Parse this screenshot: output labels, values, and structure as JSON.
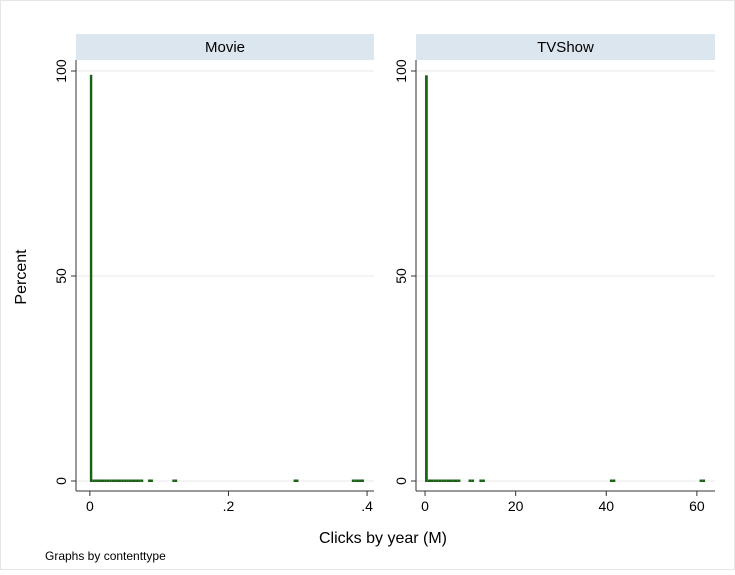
{
  "chart_data": {
    "type": "bar",
    "ylabel": "Percent",
    "xlabel": "Clicks by year (M)",
    "note": "Graphs by contenttype",
    "colors": {
      "bar": "#1a6015",
      "strip": "#dce6ee",
      "frame": "#333333",
      "grid": "#eaeaea"
    },
    "panels": [
      {
        "title": "Movie",
        "xlim": [
          -0.02,
          0.41
        ],
        "ylim": [
          -5,
          100
        ],
        "xticks": [
          0,
          0.2,
          0.4
        ],
        "xtick_labels": [
          "0",
          ".2",
          ".4"
        ],
        "yticks": [
          0,
          50,
          100
        ],
        "ytick_labels": [
          "0",
          "50",
          "100"
        ],
        "bin_width": 0.0035,
        "bins": [
          {
            "x": 0.0,
            "value": 99.3
          },
          {
            "x": 0.0035,
            "value": 0.2
          },
          {
            "x": 0.007,
            "value": 0.15
          },
          {
            "x": 0.0105,
            "value": 0.1
          },
          {
            "x": 0.014,
            "value": 0.1
          },
          {
            "x": 0.0175,
            "value": 0.08
          },
          {
            "x": 0.021,
            "value": 0.07
          },
          {
            "x": 0.0245,
            "value": 0.06
          },
          {
            "x": 0.028,
            "value": 0.05
          },
          {
            "x": 0.0315,
            "value": 0.05
          },
          {
            "x": 0.035,
            "value": 0.04
          },
          {
            "x": 0.0385,
            "value": 0.04
          },
          {
            "x": 0.042,
            "value": 0.03
          },
          {
            "x": 0.0455,
            "value": 0.03
          },
          {
            "x": 0.049,
            "value": 0.03
          },
          {
            "x": 0.0525,
            "value": 0.02
          },
          {
            "x": 0.056,
            "value": 0.02
          },
          {
            "x": 0.0595,
            "value": 0.02
          },
          {
            "x": 0.063,
            "value": 0.02
          },
          {
            "x": 0.0665,
            "value": 0.02
          },
          {
            "x": 0.07,
            "value": 0.02
          },
          {
            "x": 0.0735,
            "value": 0.02
          },
          {
            "x": 0.084,
            "value": 0.01
          },
          {
            "x": 0.0875,
            "value": 0.01
          },
          {
            "x": 0.119,
            "value": 0.01
          },
          {
            "x": 0.1225,
            "value": 0.01
          },
          {
            "x": 0.294,
            "value": 0.01
          },
          {
            "x": 0.2975,
            "value": 0.01
          },
          {
            "x": 0.378,
            "value": 0.01
          },
          {
            "x": 0.3815,
            "value": 0.01
          },
          {
            "x": 0.385,
            "value": 0.01
          },
          {
            "x": 0.3885,
            "value": 0.01
          },
          {
            "x": 0.392,
            "value": 0.01
          }
        ]
      },
      {
        "title": "TVShow",
        "xlim": [
          -2,
          64
        ],
        "ylim": [
          -5,
          100
        ],
        "xticks": [
          0,
          20,
          40,
          60
        ],
        "xtick_labels": [
          "0",
          "20",
          "40",
          "60"
        ],
        "yticks": [
          0,
          50,
          100
        ],
        "ytick_labels": [
          "0",
          "50",
          "100"
        ],
        "bin_width": 0.6,
        "bins": [
          {
            "x": 0.0,
            "value": 99.2
          },
          {
            "x": 0.6,
            "value": 0.25
          },
          {
            "x": 1.2,
            "value": 0.15
          },
          {
            "x": 1.8,
            "value": 0.1
          },
          {
            "x": 2.4,
            "value": 0.08
          },
          {
            "x": 3.0,
            "value": 0.06
          },
          {
            "x": 3.6,
            "value": 0.05
          },
          {
            "x": 4.2,
            "value": 0.04
          },
          {
            "x": 4.8,
            "value": 0.03
          },
          {
            "x": 5.4,
            "value": 0.03
          },
          {
            "x": 6.0,
            "value": 0.02
          },
          {
            "x": 6.6,
            "value": 0.02
          },
          {
            "x": 7.2,
            "value": 0.02
          },
          {
            "x": 9.6,
            "value": 0.01
          },
          {
            "x": 10.2,
            "value": 0.01
          },
          {
            "x": 12.0,
            "value": 0.01
          },
          {
            "x": 12.6,
            "value": 0.01
          },
          {
            "x": 40.8,
            "value": 0.01
          },
          {
            "x": 41.4,
            "value": 0.01
          },
          {
            "x": 60.6,
            "value": 0.01
          },
          {
            "x": 61.2,
            "value": 0.01
          }
        ]
      }
    ]
  }
}
